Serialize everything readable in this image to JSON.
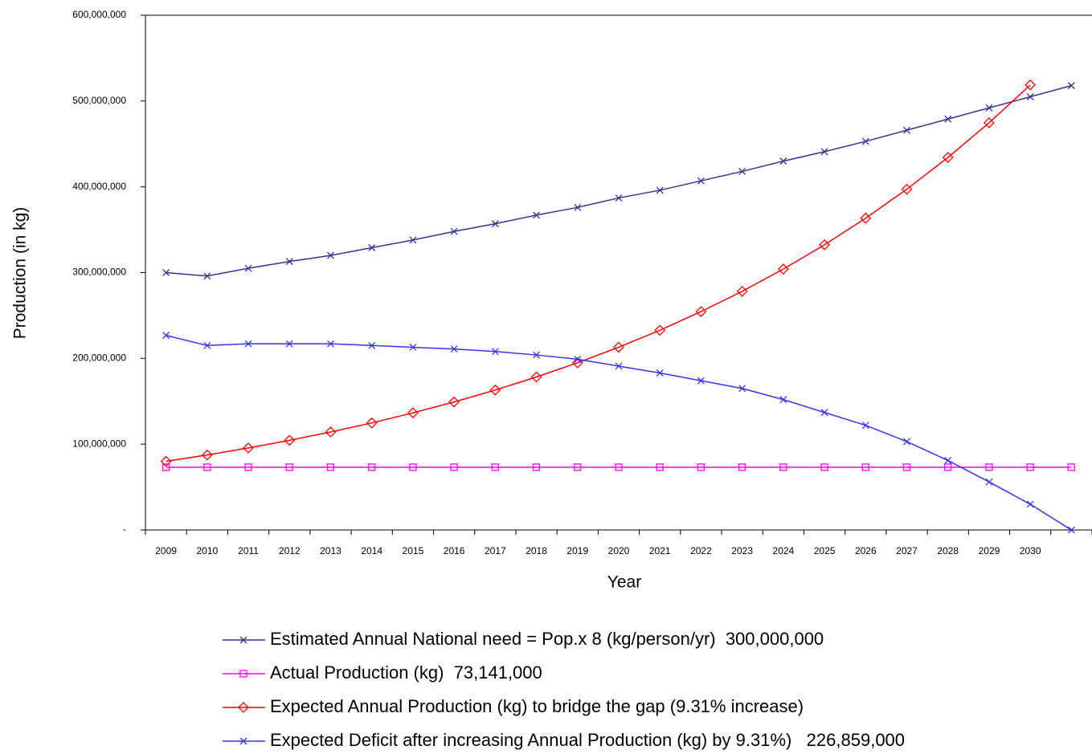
{
  "chart_data": {
    "type": "line",
    "y_axis_label": "Production (in kg)",
    "x_axis_label": "Year",
    "categories": [
      "2009",
      "2010",
      "2011",
      "2012",
      "2013",
      "2014",
      "2015",
      "2016",
      "2017",
      "2018",
      "2019",
      "2020",
      "2021",
      "2022",
      "2023",
      "2024",
      "2025",
      "2026",
      "2027",
      "2028",
      "2029",
      "2030",
      null
    ],
    "ylim": [
      0,
      600000000
    ],
    "yticks": [
      {
        "value": 0,
        "label": "-"
      },
      {
        "value": 100000000,
        "label": "100,000,000"
      },
      {
        "value": 200000000,
        "label": "200,000,000"
      },
      {
        "value": 300000000,
        "label": "300,000,000"
      },
      {
        "value": 400000000,
        "label": "400,000,000"
      },
      {
        "value": 500000000,
        "label": "500,000,000"
      },
      {
        "value": 600000000,
        "label": "600,000,000"
      }
    ],
    "series": [
      {
        "name": "Estimated Annual National need = Pop.x 8 (kg/person/yr)  300,000,000",
        "color": "#333399",
        "marker": "x",
        "values": [
          300000000,
          296000000,
          305000000,
          313000000,
          320000000,
          329000000,
          338000000,
          348000000,
          357000000,
          367000000,
          376000000,
          387000000,
          396000000,
          407000000,
          418000000,
          430000000,
          441000000,
          453000000,
          466000000,
          479000000,
          492000000,
          505000000,
          518000000
        ]
      },
      {
        "name": "Actual Production (kg)  73,141,000",
        "color": "#ff00ff",
        "marker": "square",
        "values": [
          73141000,
          73141000,
          73141000,
          73141000,
          73141000,
          73141000,
          73141000,
          73141000,
          73141000,
          73141000,
          73141000,
          73141000,
          73141000,
          73141000,
          73141000,
          73141000,
          73141000,
          73141000,
          73141000,
          73141000,
          73141000,
          73141000,
          73141000
        ]
      },
      {
        "name": "Expected Annual Production (kg) to bridge the gap (9.31% increase)",
        "color": "#ff0000",
        "marker": "diamond",
        "values": [
          80000000,
          87400000,
          95600000,
          104500000,
          114200000,
          124800000,
          136500000,
          149200000,
          163100000,
          178300000,
          194900000,
          213000000,
          232800000,
          254500000,
          278200000,
          304100000,
          332400000,
          363400000,
          397200000,
          434200000,
          474600000,
          518800000,
          null
        ]
      },
      {
        "name": "Expected Deficit after increasing Annual Production (kg) by 9.31%)   226,859,000",
        "color": "#3333ff",
        "marker": "x",
        "values": [
          226859000,
          215000000,
          217000000,
          217000000,
          217000000,
          215000000,
          213000000,
          211000000,
          208000000,
          204000000,
          199000000,
          191000000,
          183000000,
          174000000,
          165000000,
          152000000,
          137000000,
          122000000,
          103000000,
          81000000,
          56000000,
          30000000,
          0
        ]
      }
    ]
  }
}
